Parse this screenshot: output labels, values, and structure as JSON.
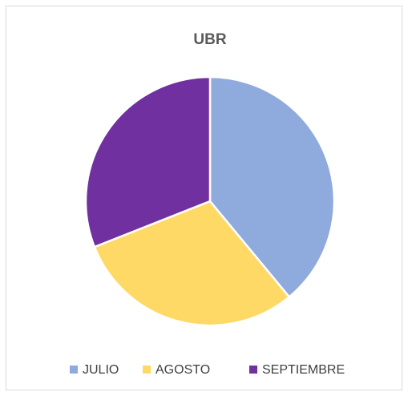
{
  "chart_data": {
    "type": "pie",
    "title": "UBR",
    "categories": [
      "JULIO",
      "AGOSTO",
      "SEPTIEMBRE"
    ],
    "values": [
      39,
      30,
      31
    ],
    "colors": [
      "#8faadc",
      "#ffd966",
      "#7030a0"
    ],
    "legend": "bottom"
  }
}
